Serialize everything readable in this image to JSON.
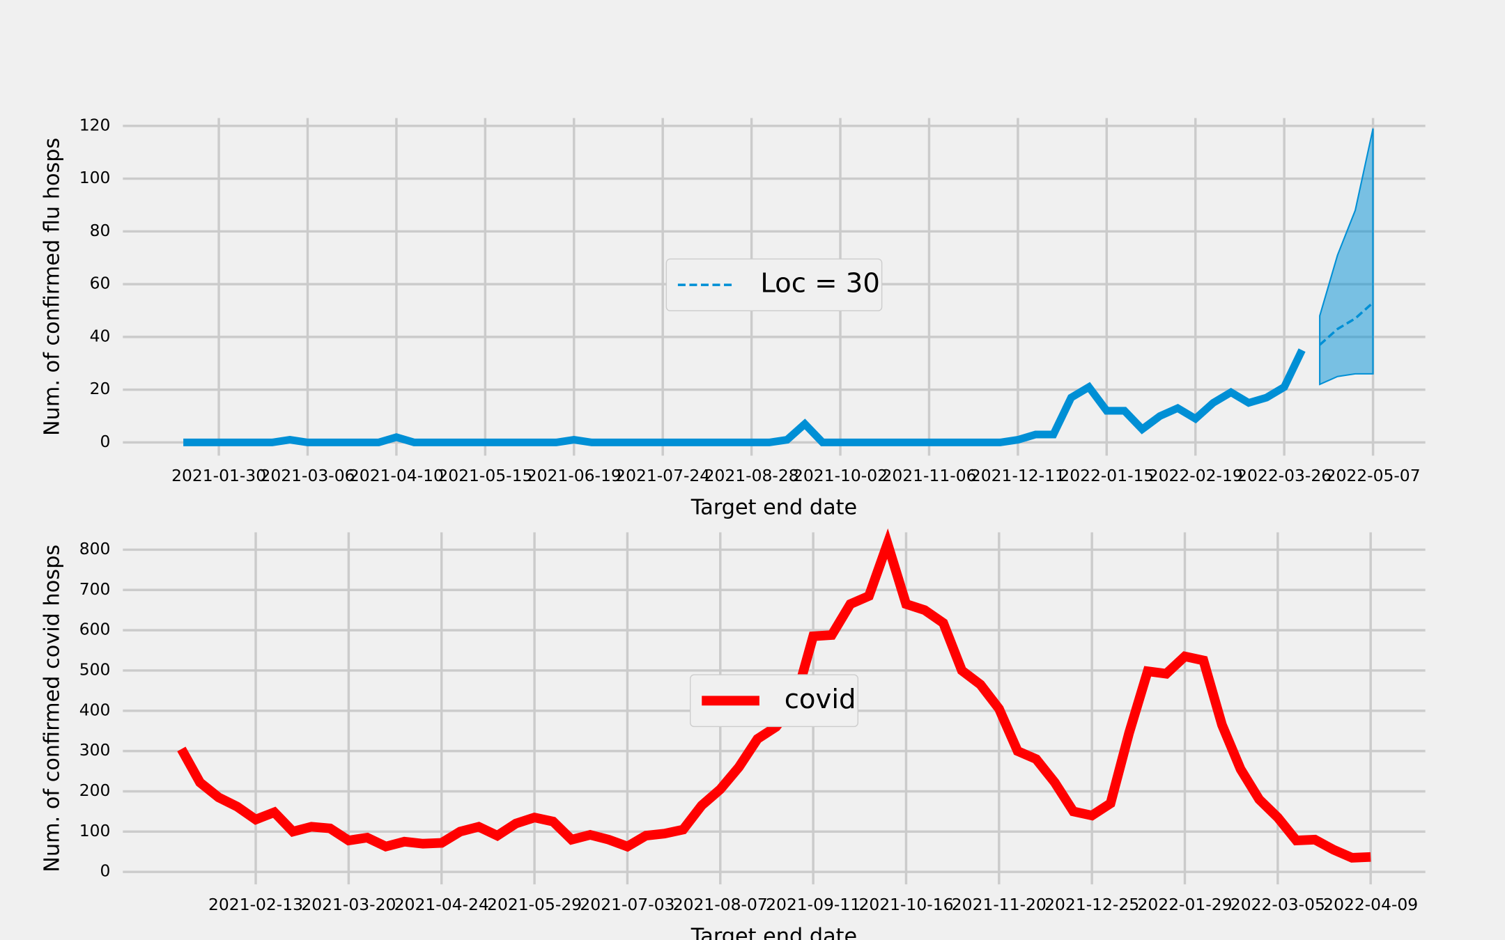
{
  "chart_data": [
    {
      "type": "line",
      "xlabel": "Target end date",
      "ylabel": "Num. of confirmed flu hosps",
      "categories": [
        null,
        null,
        "2021-01-30",
        null,
        null,
        null,
        null,
        "2021-03-06",
        null,
        null,
        null,
        null,
        "2021-04-10",
        null,
        null,
        null,
        null,
        "2021-05-15",
        null,
        null,
        null,
        null,
        "2021-06-19",
        null,
        null,
        null,
        null,
        "2021-07-24",
        null,
        null,
        null,
        null,
        "2021-08-28",
        null,
        null,
        null,
        null,
        "2021-10-02",
        null,
        null,
        null,
        null,
        "2021-11-06",
        null,
        null,
        null,
        null,
        "2021-12-11",
        null,
        null,
        null,
        null,
        "2022-01-15",
        null,
        null,
        null,
        null,
        "2022-02-19",
        null,
        null,
        null,
        null,
        "2022-03-26",
        null,
        null,
        null,
        null,
        "2022-05-07"
      ],
      "ylim": [
        -5,
        123
      ],
      "yticks": [
        0,
        20,
        40,
        60,
        80,
        100,
        120
      ],
      "grid": true,
      "legend": "center",
      "series": [
        {
          "color": "#008fd5",
          "values": [
            0,
            0,
            0,
            0,
            0,
            0,
            1,
            0,
            0,
            0,
            0,
            0,
            2,
            0,
            0,
            0,
            0,
            0,
            0,
            0,
            0,
            0,
            1,
            0,
            0,
            0,
            0,
            0,
            0,
            0,
            0,
            0,
            0,
            0,
            1,
            7,
            0,
            0,
            0,
            0,
            0,
            0,
            0,
            0,
            0,
            0,
            0,
            1,
            3,
            3,
            17,
            21,
            12,
            12,
            5,
            10,
            13,
            9,
            15,
            19,
            15,
            17,
            21,
            35,
            null,
            null,
            null,
            null
          ]
        },
        {
          "name": "Loc = 30",
          "color": "#008fd5",
          "dashed": true,
          "values": [
            null,
            null,
            null,
            null,
            null,
            null,
            null,
            null,
            null,
            null,
            null,
            null,
            null,
            null,
            null,
            null,
            null,
            null,
            null,
            null,
            null,
            null,
            null,
            null,
            null,
            null,
            null,
            null,
            null,
            null,
            null,
            null,
            null,
            null,
            null,
            null,
            null,
            null,
            null,
            null,
            null,
            null,
            null,
            null,
            null,
            null,
            null,
            null,
            null,
            null,
            null,
            null,
            null,
            null,
            null,
            null,
            null,
            null,
            null,
            null,
            null,
            null,
            null,
            null,
            37,
            43,
            47,
            53
          ],
          "lower": [
            null,
            null,
            null,
            null,
            null,
            null,
            null,
            null,
            null,
            null,
            null,
            null,
            null,
            null,
            null,
            null,
            null,
            null,
            null,
            null,
            null,
            null,
            null,
            null,
            null,
            null,
            null,
            null,
            null,
            null,
            null,
            null,
            null,
            null,
            null,
            null,
            null,
            null,
            null,
            null,
            null,
            null,
            null,
            null,
            null,
            null,
            null,
            null,
            null,
            null,
            null,
            null,
            null,
            null,
            null,
            null,
            null,
            null,
            null,
            null,
            null,
            null,
            null,
            null,
            22,
            25,
            26,
            26
          ],
          "upper": [
            null,
            null,
            null,
            null,
            null,
            null,
            null,
            null,
            null,
            null,
            null,
            null,
            null,
            null,
            null,
            null,
            null,
            null,
            null,
            null,
            null,
            null,
            null,
            null,
            null,
            null,
            null,
            null,
            null,
            null,
            null,
            null,
            null,
            null,
            null,
            null,
            null,
            null,
            null,
            null,
            null,
            null,
            null,
            null,
            null,
            null,
            null,
            null,
            null,
            null,
            null,
            null,
            null,
            null,
            null,
            null,
            null,
            null,
            null,
            null,
            null,
            null,
            null,
            null,
            48,
            71,
            88,
            119
          ]
        }
      ]
    },
    {
      "type": "line",
      "xlabel": "Target end date",
      "ylabel": "Num. of confirmed covid hosps",
      "categories": [
        null,
        null,
        null,
        null,
        "2021-02-13",
        null,
        null,
        null,
        null,
        "2021-03-20",
        null,
        null,
        null,
        null,
        "2021-04-24",
        null,
        null,
        null,
        null,
        "2021-05-29",
        null,
        null,
        null,
        null,
        "2021-07-03",
        null,
        null,
        null,
        null,
        "2021-08-07",
        null,
        null,
        null,
        null,
        "2021-09-11",
        null,
        null,
        null,
        null,
        "2021-10-16",
        null,
        null,
        null,
        null,
        "2021-11-20",
        null,
        null,
        null,
        null,
        "2021-12-25",
        null,
        null,
        null,
        null,
        "2022-01-29",
        null,
        null,
        null,
        null,
        "2022-03-05",
        null,
        null,
        null,
        null,
        "2022-04-09"
      ],
      "ylim": [
        -31,
        843
      ],
      "yticks": [
        0,
        100,
        200,
        300,
        400,
        500,
        600,
        700,
        800
      ],
      "grid": true,
      "legend": "center",
      "series": [
        {
          "name": "covid",
          "color": "#ff0000",
          "values": [
            305,
            222,
            185,
            162,
            130,
            148,
            100,
            112,
            108,
            78,
            85,
            63,
            75,
            70,
            72,
            100,
            112,
            90,
            120,
            135,
            125,
            80,
            92,
            80,
            63,
            90,
            95,
            105,
            165,
            205,
            260,
            330,
            360,
            420,
            585,
            588,
            665,
            685,
            815,
            665,
            650,
            618,
            500,
            465,
            405,
            300,
            280,
            222,
            150,
            140,
            170,
            345,
            498,
            492,
            535,
            525,
            365,
            255,
            180,
            135,
            78,
            80,
            55,
            35,
            37
          ]
        }
      ]
    }
  ]
}
